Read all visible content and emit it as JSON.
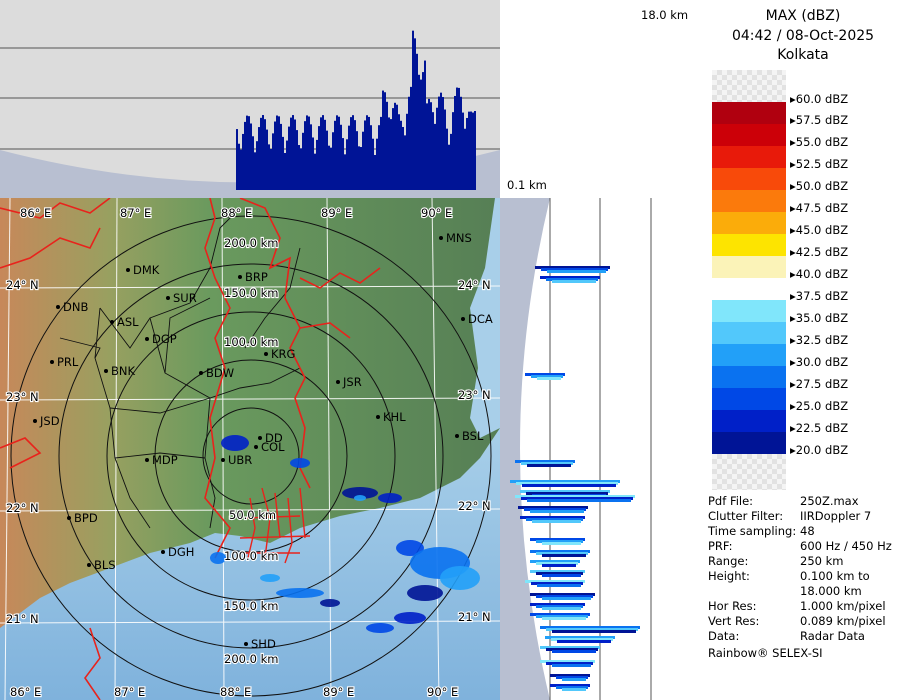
{
  "header": {
    "product": "MAX (dBZ)",
    "datetime": "04:42 / 08-Oct-2025",
    "station": "Kolkata"
  },
  "height_labels": {
    "top": "18.0 km",
    "bottom": "0.1 km"
  },
  "legend": {
    "entries": [
      {
        "label": "60.0 dBZ",
        "color": ""
      },
      {
        "label": "57.5 dBZ",
        "color": "#b0000f"
      },
      {
        "label": "55.0 dBZ",
        "color": "#cc0008"
      },
      {
        "label": "52.5 dBZ",
        "color": "#e81a0a"
      },
      {
        "label": "50.0 dBZ",
        "color": "#f84a0a"
      },
      {
        "label": "47.5 dBZ",
        "color": "#fb7a0c"
      },
      {
        "label": "45.0 dBZ",
        "color": "#fbac0a"
      },
      {
        "label": "42.5 dBZ",
        "color": "#fde400"
      },
      {
        "label": "40.0 dBZ",
        "color": "#fbf3b8"
      },
      {
        "label": "37.5 dBZ",
        "color": "#ffffff"
      },
      {
        "label": "35.0 dBZ",
        "color": "#80e6fb"
      },
      {
        "label": "32.5 dBZ",
        "color": "#52c8fb"
      },
      {
        "label": "30.0 dBZ",
        "color": "#22a0f8"
      },
      {
        "label": "27.5 dBZ",
        "color": "#0a72f0"
      },
      {
        "label": "25.0 dBZ",
        "color": "#0048e6"
      },
      {
        "label": "22.5 dBZ",
        "color": "#0020c8"
      },
      {
        "label": "20.0 dBZ",
        "color": "#001496"
      }
    ]
  },
  "metadata": [
    {
      "key": "Pdf File:",
      "value": "250Z.max"
    },
    {
      "key": "Clutter Filter:",
      "value": "IIRDoppler 7"
    },
    {
      "key": "Time sampling:",
      "value": "48"
    },
    {
      "key": "PRF:",
      "value": "600 Hz / 450 Hz"
    },
    {
      "key": "Range:",
      "value": "250 km"
    },
    {
      "key": "Height:",
      "value": "0.100 km to 18.000 km"
    },
    {
      "key": "Hor Res:",
      "value": "1.000 km/pixel"
    },
    {
      "key": "Vert Res:",
      "value": "0.089 km/pixel"
    },
    {
      "key": "Data:",
      "value": "Radar Data"
    }
  ],
  "vendor": "Rainbow® SELEX-SI",
  "map": {
    "lon_labels": [
      "86° E",
      "87° E",
      "88° E",
      "89° E",
      "90° E"
    ],
    "lat_labels": [
      "24° N",
      "23° N",
      "22° N",
      "21° N"
    ],
    "range_rings": [
      "50.0 km",
      "100.0 km",
      "150.0 km",
      "200.0 km"
    ],
    "cities": [
      {
        "code": "DMK"
      },
      {
        "code": "BRP"
      },
      {
        "code": "MNS"
      },
      {
        "code": "DNB"
      },
      {
        "code": "SUR"
      },
      {
        "code": "ASL"
      },
      {
        "code": "DGP"
      },
      {
        "code": "DCA"
      },
      {
        "code": "PRL"
      },
      {
        "code": "KRG"
      },
      {
        "code": "BNK"
      },
      {
        "code": "BDW"
      },
      {
        "code": "JSR"
      },
      {
        "code": "JSD"
      },
      {
        "code": "KHL"
      },
      {
        "code": "BSL"
      },
      {
        "code": "DD"
      },
      {
        "code": "UBR"
      },
      {
        "code": "COL"
      },
      {
        "code": "MDP"
      },
      {
        "code": "BPD"
      },
      {
        "code": "DGH"
      },
      {
        "code": "BLS"
      },
      {
        "code": "SHD"
      }
    ]
  },
  "colors": {
    "land_high": "#c98a5a",
    "land_low": "#5f9a5e",
    "sea": "#8bbde2",
    "border": "#e8231c",
    "grid": "#ffffff",
    "ring": "#000000"
  }
}
